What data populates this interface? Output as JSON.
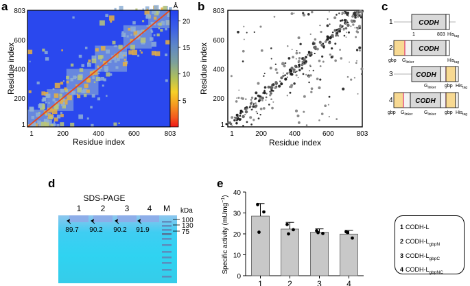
{
  "panels": {
    "a": "a",
    "b": "b",
    "c": "c",
    "d": "d",
    "e": "e"
  },
  "panel_a": {
    "x_label": "Residue index",
    "y_label": "Residue index",
    "x_ticks": [
      "1",
      "200",
      "400",
      "600",
      "803"
    ],
    "y_ticks": [
      "1",
      "200",
      "400",
      "600",
      "803"
    ],
    "colorbar_unit": "Å",
    "colorbar_ticks": [
      "20",
      "15",
      "10",
      "5"
    ]
  },
  "panel_b": {
    "x_label": "Residue index",
    "y_label": "Residue index",
    "x_ticks": [
      "1",
      "200",
      "400",
      "600",
      "803"
    ],
    "y_ticks": [
      "1",
      "200",
      "400",
      "600",
      "803"
    ]
  },
  "panel_c": {
    "constructs": [
      {
        "number": "1",
        "domain": "CODH",
        "start": "1",
        "end": "803",
        "labels": [
          "1",
          "803",
          "His"
        ]
      },
      {
        "number": "2",
        "domain": "CODH",
        "labels": [
          "gbp",
          "G",
          "His"
        ]
      },
      {
        "number": "3",
        "domain": "CODH",
        "labels": [
          "G",
          "gbp",
          "His"
        ]
      },
      {
        "number": "4",
        "domain": "CODH",
        "labels": [
          "gbp",
          "G",
          "G",
          "gbp",
          "His"
        ]
      }
    ],
    "sub_tag": "tag",
    "sub_linker": "linker"
  },
  "panel_d": {
    "title": "SDS-PAGE",
    "lanes": [
      "1",
      "2",
      "3",
      "4",
      "M"
    ],
    "unit": "kDa",
    "marker_labels": [
      "130",
      "100",
      "75"
    ],
    "band_values": [
      "89.7",
      "90.2",
      "90.2",
      "91.9"
    ]
  },
  "panel_e": {
    "y_label": "Specific activity (mUmg",
    "y_label_sup": "−1",
    "y_label_end": ")"
  },
  "legend": {
    "items": [
      {
        "num": "1",
        "name": "CODH-L",
        "sub": ""
      },
      {
        "num": "2",
        "name": "CODH-L",
        "sub": "gbpN"
      },
      {
        "num": "3",
        "name": "CODH-L",
        "sub": "gbpC"
      },
      {
        "num": "4",
        "name": "CODH-L",
        "sub": "gbpNC"
      }
    ]
  },
  "colors": {
    "bar_fill": "#c8c8c8",
    "heatmap_far": "#2a48ee",
    "heatmap_mid": "#7c9cd9",
    "heatmap_near": "#f18a3a",
    "heatmap_contact": "#e03a1f",
    "gel_bg": "#2fd0f0",
    "gbp_box": "#f7d992",
    "linker": "#e0306a"
  },
  "chart_data": [
    {
      "type": "heatmap",
      "title": "",
      "xlabel": "Residue index",
      "ylabel": "Residue index",
      "xlim": [
        1,
        803
      ],
      "ylim": [
        1,
        803
      ],
      "colorbar_range": [
        0,
        22
      ],
      "colorbar_unit": "Å",
      "colorbar_ticks": [
        20,
        15,
        10,
        5
      ]
    },
    {
      "type": "scatter",
      "title": "",
      "xlabel": "Residue index",
      "ylabel": "Residue index",
      "xlim": [
        1,
        803
      ],
      "ylim": [
        1,
        803
      ]
    },
    {
      "type": "bar",
      "title": "",
      "xlabel": "",
      "ylabel": "Specific activity (mUmg−1)",
      "categories": [
        "1",
        "2",
        "3",
        "4"
      ],
      "values": [
        28.5,
        22.3,
        20.8,
        19.9
      ],
      "errors": [
        6.0,
        3.2,
        1.6,
        1.8
      ],
      "points": [
        [
          34.0,
          30.5,
          20.8
        ],
        [
          24.5,
          22.0,
          20.0
        ],
        [
          21.5,
          20.2,
          20.6
        ],
        [
          21.0,
          18.0,
          20.6
        ]
      ],
      "ylim": [
        0,
        40
      ],
      "yticks": [
        0,
        10,
        20,
        30,
        40
      ]
    }
  ]
}
